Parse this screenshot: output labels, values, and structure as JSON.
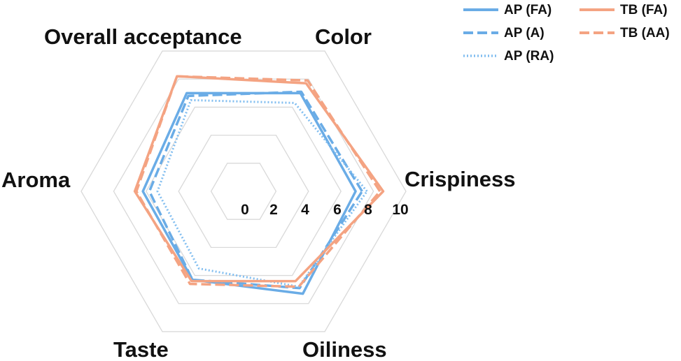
{
  "chart_data": {
    "type": "radar",
    "axes": [
      "Crispiness",
      "Color",
      "Overall acceptance",
      "Aroma",
      "Taste",
      "Oiliness"
    ],
    "range": [
      0,
      10
    ],
    "ticks": [
      0,
      2,
      4,
      6,
      8,
      10
    ],
    "tick_labels": [
      "0",
      "2",
      "4",
      "6",
      "8",
      "10"
    ],
    "grid": true,
    "legend_position": "top-right",
    "series": [
      {
        "name": "AP (FA)",
        "color": "#6aace6",
        "style": "solid",
        "values": [
          6.9,
          7.0,
          7.0,
          6.2,
          6.3,
          7.3
        ]
      },
      {
        "name": "AP (A)",
        "color": "#6aace6",
        "style": "dashed",
        "values": [
          7.3,
          7.1,
          6.8,
          5.8,
          6.3,
          6.9
        ]
      },
      {
        "name": "AP (RA)",
        "color": "#82bef0",
        "style": "dotted",
        "values": [
          7.6,
          6.3,
          6.5,
          5.3,
          5.5,
          6.8
        ]
      },
      {
        "name": "TB (FA)",
        "color": "#f4a382",
        "style": "solid",
        "values": [
          8.6,
          7.7,
          8.2,
          6.7,
          6.4,
          6.4
        ]
      },
      {
        "name": "TB (AA)",
        "color": "#f4a382",
        "style": "dashed",
        "values": [
          8.4,
          7.9,
          8.2,
          6.6,
          6.6,
          6.8
        ]
      }
    ]
  }
}
